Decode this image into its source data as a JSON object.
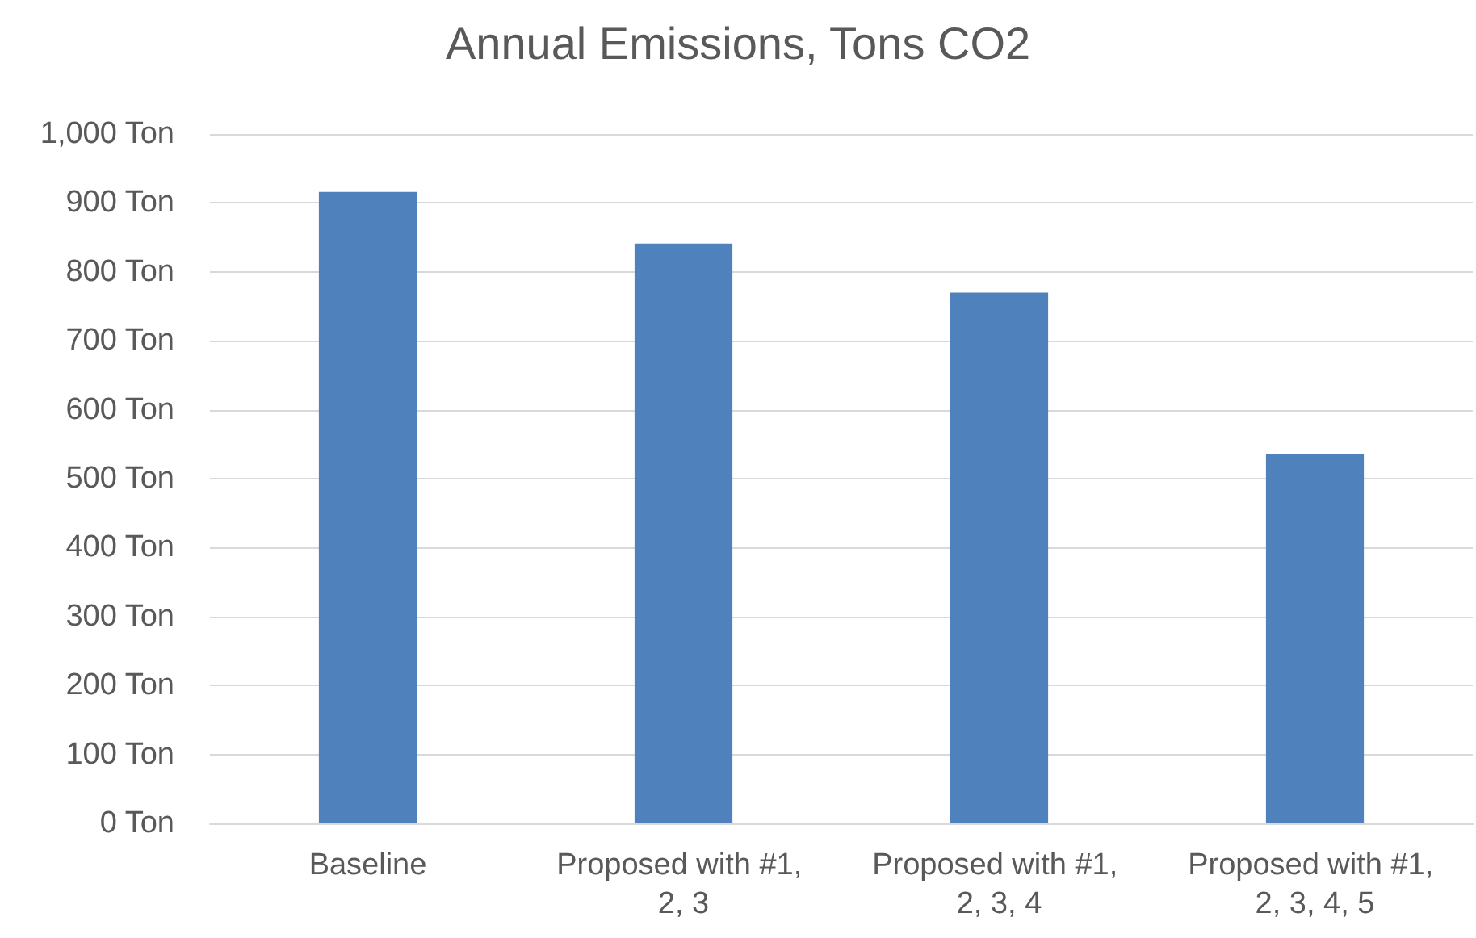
{
  "chart_data": {
    "type": "bar",
    "title": "Annual Emissions, Tons CO2",
    "categories": [
      "Baseline",
      "Proposed with #1, 2, 3",
      "Proposed with #1, 2, 3, 4",
      "Proposed with #1, 2, 3, 4, 5"
    ],
    "values": [
      916,
      841,
      770,
      536
    ],
    "color": "#4f81bd",
    "ylim": [
      0,
      1000
    ],
    "yticks": [
      {
        "value": 0,
        "label": "0 Ton"
      },
      {
        "value": 100,
        "label": "100 Ton"
      },
      {
        "value": 200,
        "label": "200 Ton"
      },
      {
        "value": 300,
        "label": "300 Ton"
      },
      {
        "value": 400,
        "label": "400 Ton"
      },
      {
        "value": 500,
        "label": "500 Ton"
      },
      {
        "value": 600,
        "label": "600 Ton"
      },
      {
        "value": 700,
        "label": "700 Ton"
      },
      {
        "value": 800,
        "label": "800 Ton"
      },
      {
        "value": 900,
        "label": "900 Ton"
      },
      {
        "value": 1000,
        "label": "1,000 Ton"
      }
    ],
    "grid": true
  }
}
